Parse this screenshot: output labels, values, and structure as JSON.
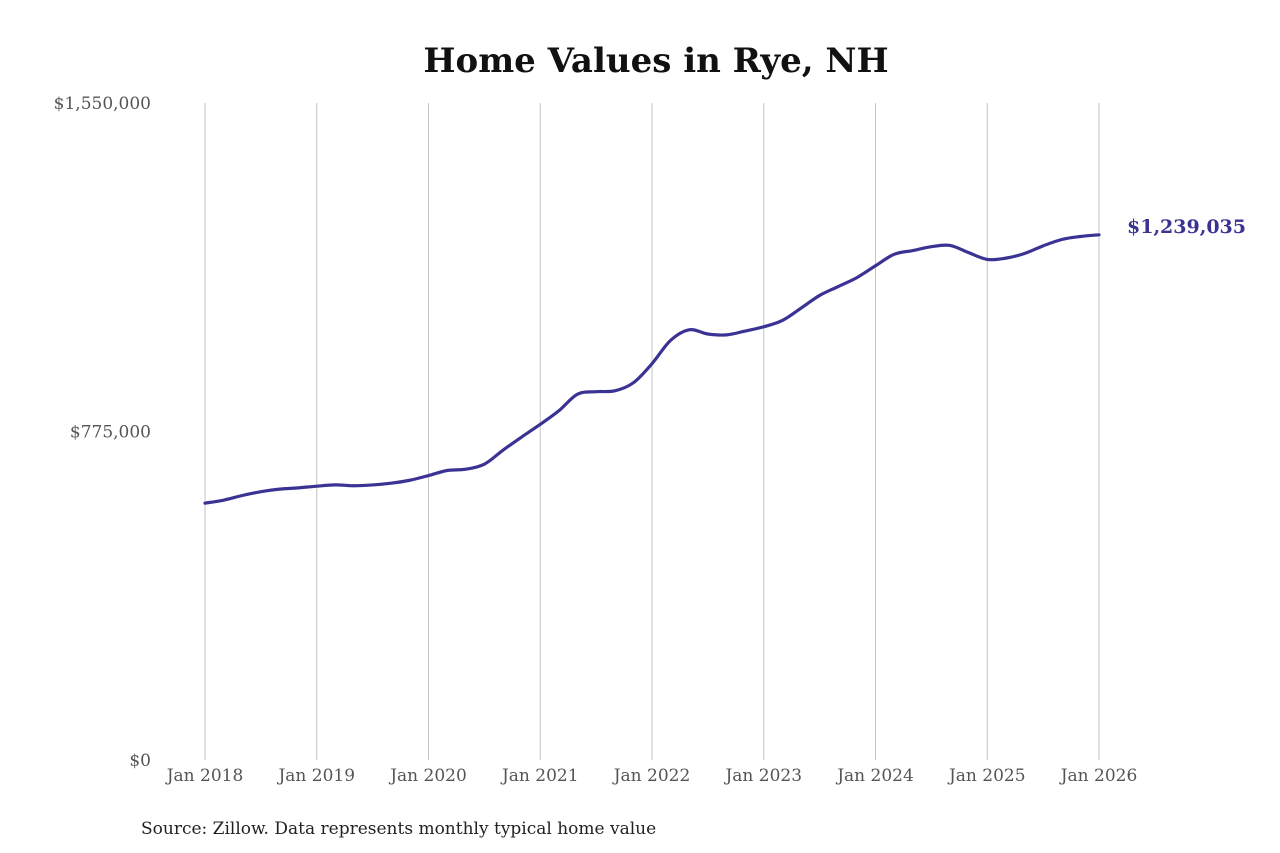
{
  "chart_data": {
    "type": "line",
    "title": "Home Values in Rye, NH",
    "xlabel": "",
    "ylabel": "",
    "y_ticks": [
      "$0",
      "$775,000",
      "$1,550,000"
    ],
    "y_tick_values": [
      0,
      775000,
      1550000
    ],
    "ylim": [
      0,
      1550000
    ],
    "x_ticks": [
      "Jan 2018",
      "Jan 2019",
      "Jan 2020",
      "Jan 2021",
      "Jan 2022",
      "Jan 2023",
      "Jan 2024",
      "Jan 2025",
      "Jan 2026"
    ],
    "x_tick_values": [
      "2018-01",
      "2019-01",
      "2020-01",
      "2021-01",
      "2022-01",
      "2023-01",
      "2024-01",
      "2025-01",
      "2026-01"
    ],
    "xlim": [
      "2018-01",
      "2026-01"
    ],
    "grid": "vertical",
    "legend": "none",
    "line_color": "#3b3394",
    "series": [
      {
        "x": [
          "2018-01",
          "2018-03",
          "2018-05",
          "2018-07",
          "2018-09",
          "2018-11",
          "2019-01",
          "2019-03",
          "2019-05",
          "2019-07",
          "2019-09",
          "2019-11",
          "2020-01",
          "2020-03",
          "2020-05",
          "2020-07",
          "2020-09",
          "2020-11",
          "2021-01",
          "2021-03",
          "2021-05",
          "2021-07",
          "2021-09",
          "2021-11",
          "2022-01",
          "2022-03",
          "2022-05",
          "2022-07",
          "2022-09",
          "2022-11",
          "2023-01",
          "2023-03",
          "2023-05",
          "2023-07",
          "2023-09",
          "2023-11",
          "2024-01",
          "2024-03",
          "2024-05",
          "2024-07",
          "2024-09",
          "2024-11",
          "2025-01",
          "2025-03",
          "2025-05",
          "2025-07",
          "2025-09",
          "2025-11",
          "2026-01"
        ],
        "values": [
          606000,
          613000,
          624000,
          633000,
          639000,
          642000,
          646000,
          649000,
          647000,
          649000,
          653000,
          660000,
          671000,
          683000,
          686000,
          698000,
          731000,
          762000,
          792000,
          824000,
          863000,
          869000,
          871000,
          890000,
          935000,
          990000,
          1015000,
          1005000,
          1003000,
          1012000,
          1022000,
          1037000,
          1066000,
          1096000,
          1117000,
          1138000,
          1166000,
          1193000,
          1202000,
          1211000,
          1214000,
          1197000,
          1181000,
          1184000,
          1195000,
          1213000,
          1228000,
          1235000,
          1239035
        ]
      }
    ],
    "annotations": [
      {
        "text": "$1,239,035",
        "x": "2026-01",
        "y": 1239035
      }
    ]
  },
  "source_note": "Source: Zillow. Data represents monthly typical home value"
}
